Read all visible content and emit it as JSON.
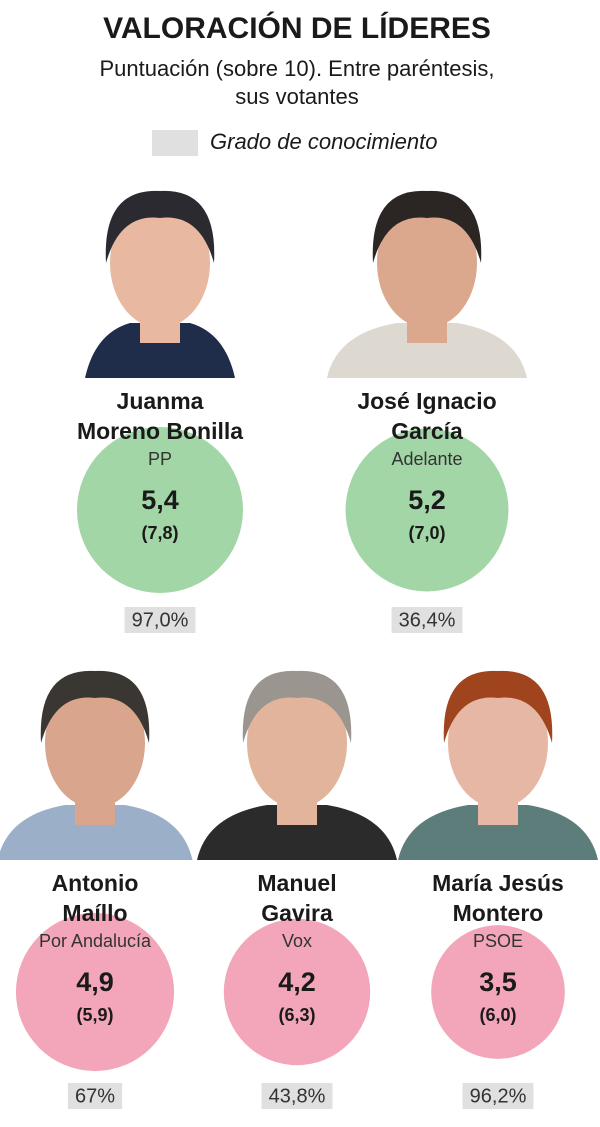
{
  "header": {
    "title": "VALORACIÓN DE LÍDERES",
    "subtitle": [
      "Puntuación (sobre 10). Entre paréntesis,",
      "sus votantes"
    ]
  },
  "legend": {
    "label": "Grado de conocimiento"
  },
  "leaders": [
    {
      "name": [
        "Juanma",
        "Moreno Bonilla"
      ],
      "party": "PP",
      "score": {
        "value": 5.4,
        "label": "5,4"
      },
      "voters": "(7,8)",
      "knowledge": "97,0%",
      "color": "#a3d6a7"
    },
    {
      "name": [
        "José Ignacio",
        "García"
      ],
      "party": "Adelante",
      "score": {
        "value": 5.2,
        "label": "5,2"
      },
      "voters": "(7,0)",
      "knowledge": "36,4%",
      "color": "#a3d6a7"
    },
    {
      "name": [
        "Antonio",
        "Maíllo"
      ],
      "party": "Por Andalucía",
      "score": {
        "value": 4.9,
        "label": "4,9"
      },
      "voters": "(5,9)",
      "knowledge": "67%",
      "color": "#f3a6ba"
    },
    {
      "name": [
        "Manuel",
        "Gavira"
      ],
      "party": "Vox",
      "score": {
        "value": 4.2,
        "label": "4,2"
      },
      "voters": "(6,3)",
      "knowledge": "43,8%",
      "color": "#f3a6ba"
    },
    {
      "name": [
        "María Jesús",
        "Montero"
      ],
      "party": "PSOE",
      "score": {
        "value": 3.5,
        "label": "3,5"
      },
      "voters": "(6,0)",
      "knowledge": "96,2%",
      "color": "#f3a6ba"
    }
  ]
}
